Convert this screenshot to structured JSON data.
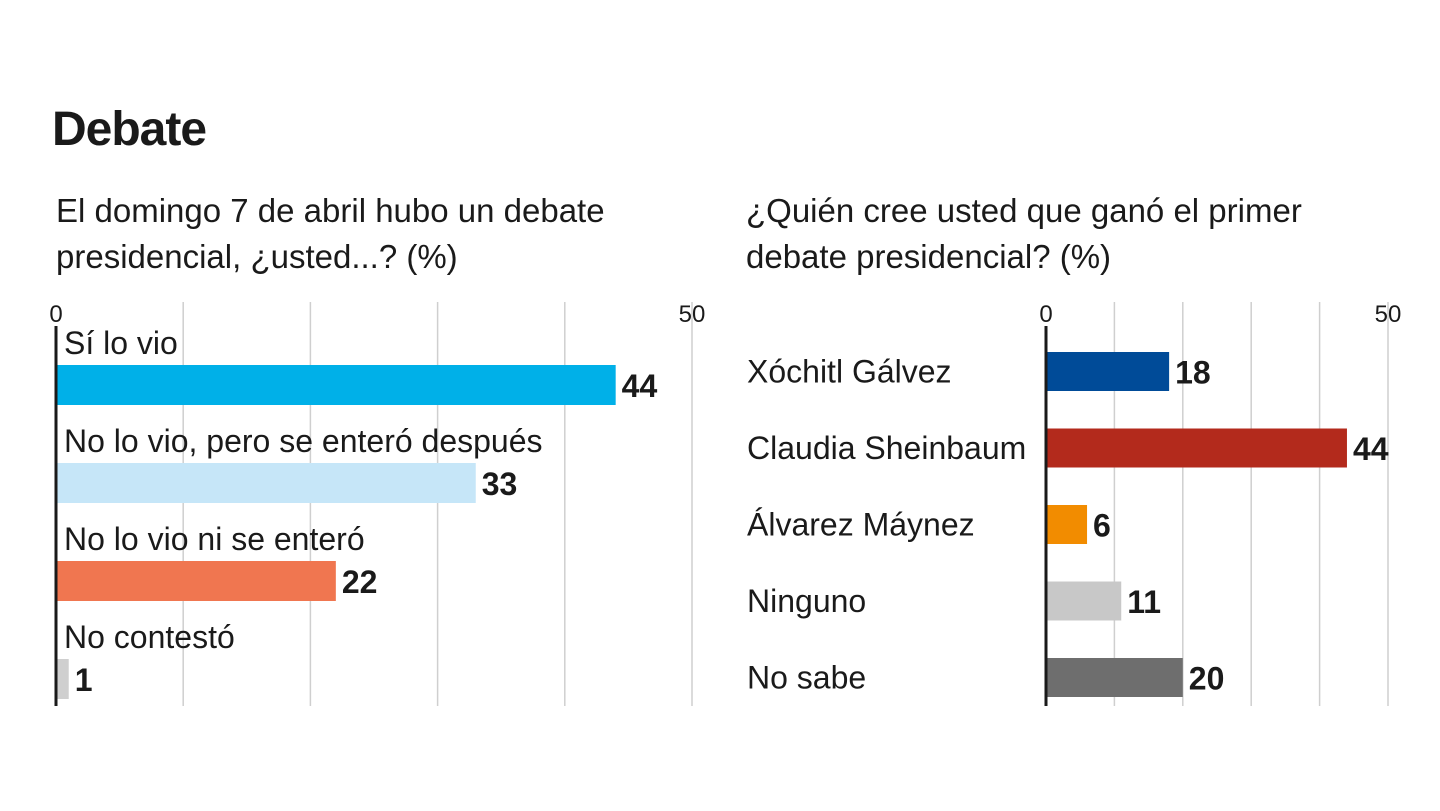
{
  "title": "Debate",
  "chart_data": [
    {
      "type": "bar",
      "orientation": "horizontal",
      "title": "El domingo 7 de abril hubo un debate presidencial, ¿usted...? (%)",
      "categories": [
        "Sí lo vio",
        "No lo vio, pero se enteró después",
        "No lo vio ni se enteró",
        "No contestó"
      ],
      "values": [
        44,
        33,
        22,
        1
      ],
      "colors": [
        "#00b0e8",
        "#c6e6f8",
        "#f07650",
        "#cfcfcf"
      ],
      "xlim": [
        0,
        50
      ],
      "tick_labels": [
        "0",
        "50"
      ],
      "grid": true,
      "label_position": "above-bar"
    },
    {
      "type": "bar",
      "orientation": "horizontal",
      "title": "¿Quién cree usted que ganó el primer debate presidencial? (%)",
      "categories": [
        "Xóchitl Gálvez",
        "Claudia Sheinbaum",
        "Álvarez Máynez",
        "Ninguno",
        "No sabe"
      ],
      "values": [
        18,
        44,
        6,
        11,
        20
      ],
      "colors": [
        "#004b98",
        "#b32a1c",
        "#f28c00",
        "#c8c8c8",
        "#6e6e6e"
      ],
      "xlim": [
        0,
        50
      ],
      "tick_labels": [
        "0",
        "50"
      ],
      "grid": true,
      "label_position": "left-of-axis"
    }
  ]
}
